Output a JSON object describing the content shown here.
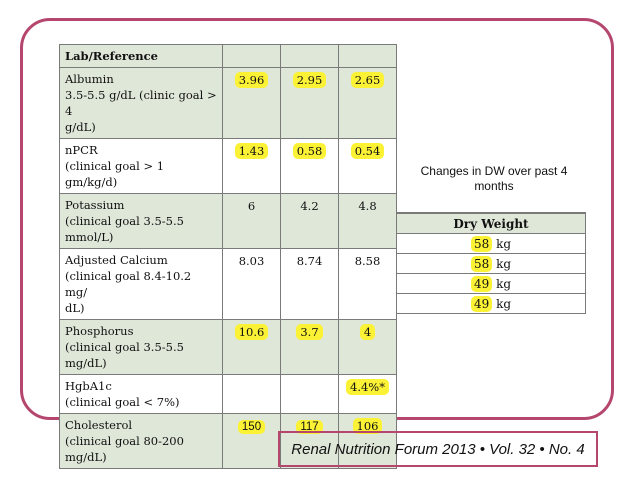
{
  "lab_table": {
    "header": "Lab/Reference",
    "rows": [
      {
        "label": [
          "Albumin",
          "3.5-5.5 g/dL (clinic goal > 4",
          "g/dL)"
        ],
        "values": [
          "3.96",
          "2.95",
          "2.65"
        ],
        "highlight": [
          true,
          true,
          true
        ],
        "shaded": true
      },
      {
        "label": [
          "nPCR",
          "(clinical goal > 1 gm/kg/d)"
        ],
        "values": [
          "1.43",
          "0.58",
          "0.54"
        ],
        "highlight": [
          true,
          true,
          true
        ],
        "shaded": false
      },
      {
        "label": [
          "Potassium",
          "(clinical goal 3.5-5.5",
          "mmol/L)"
        ],
        "values": [
          "6",
          "4.2",
          "4.8"
        ],
        "highlight": [
          false,
          false,
          false
        ],
        "shaded": true
      },
      {
        "label": [
          "Adjusted Calcium",
          "(clinical goal 8.4-10.2 mg/",
          "dL)"
        ],
        "values": [
          "8.03",
          "8.74",
          "8.58"
        ],
        "highlight": [
          false,
          false,
          false
        ],
        "shaded": false
      },
      {
        "label": [
          "Phosphorus",
          "(clinical goal 3.5-5.5 mg/dL)"
        ],
        "values": [
          "10.6",
          "3.7",
          "4"
        ],
        "highlight": [
          true,
          true,
          true
        ],
        "shaded": true
      },
      {
        "label": [
          "HgbA1c",
          "(clinical goal < 7%)"
        ],
        "values": [
          "",
          "",
          "4.4%*"
        ],
        "highlight": [
          false,
          false,
          true
        ],
        "shaded": false
      },
      {
        "label": [
          "Cholesterol",
          "(clinical goal 80-200 mg/dL)"
        ],
        "values": [
          "150",
          "117",
          "106"
        ],
        "highlight": [
          true,
          true,
          true
        ],
        "shaded": true,
        "sans_values": [
          true,
          true,
          false
        ]
      }
    ]
  },
  "dry_weight": {
    "caption": "Changes in DW over past 4 months",
    "header": "Dry Weight",
    "entries": [
      {
        "value": "58",
        "unit": "kg"
      },
      {
        "value": "58",
        "unit": "kg"
      },
      {
        "value": "49",
        "unit": "kg"
      },
      {
        "value": "49",
        "unit": "kg"
      }
    ]
  },
  "footer": "Renal Nutrition Forum 2013 • Vol. 32 • No. 4",
  "colors": {
    "frame": "#b5476f",
    "highlight": "#fbf236",
    "shade": "#dfe7d9"
  }
}
